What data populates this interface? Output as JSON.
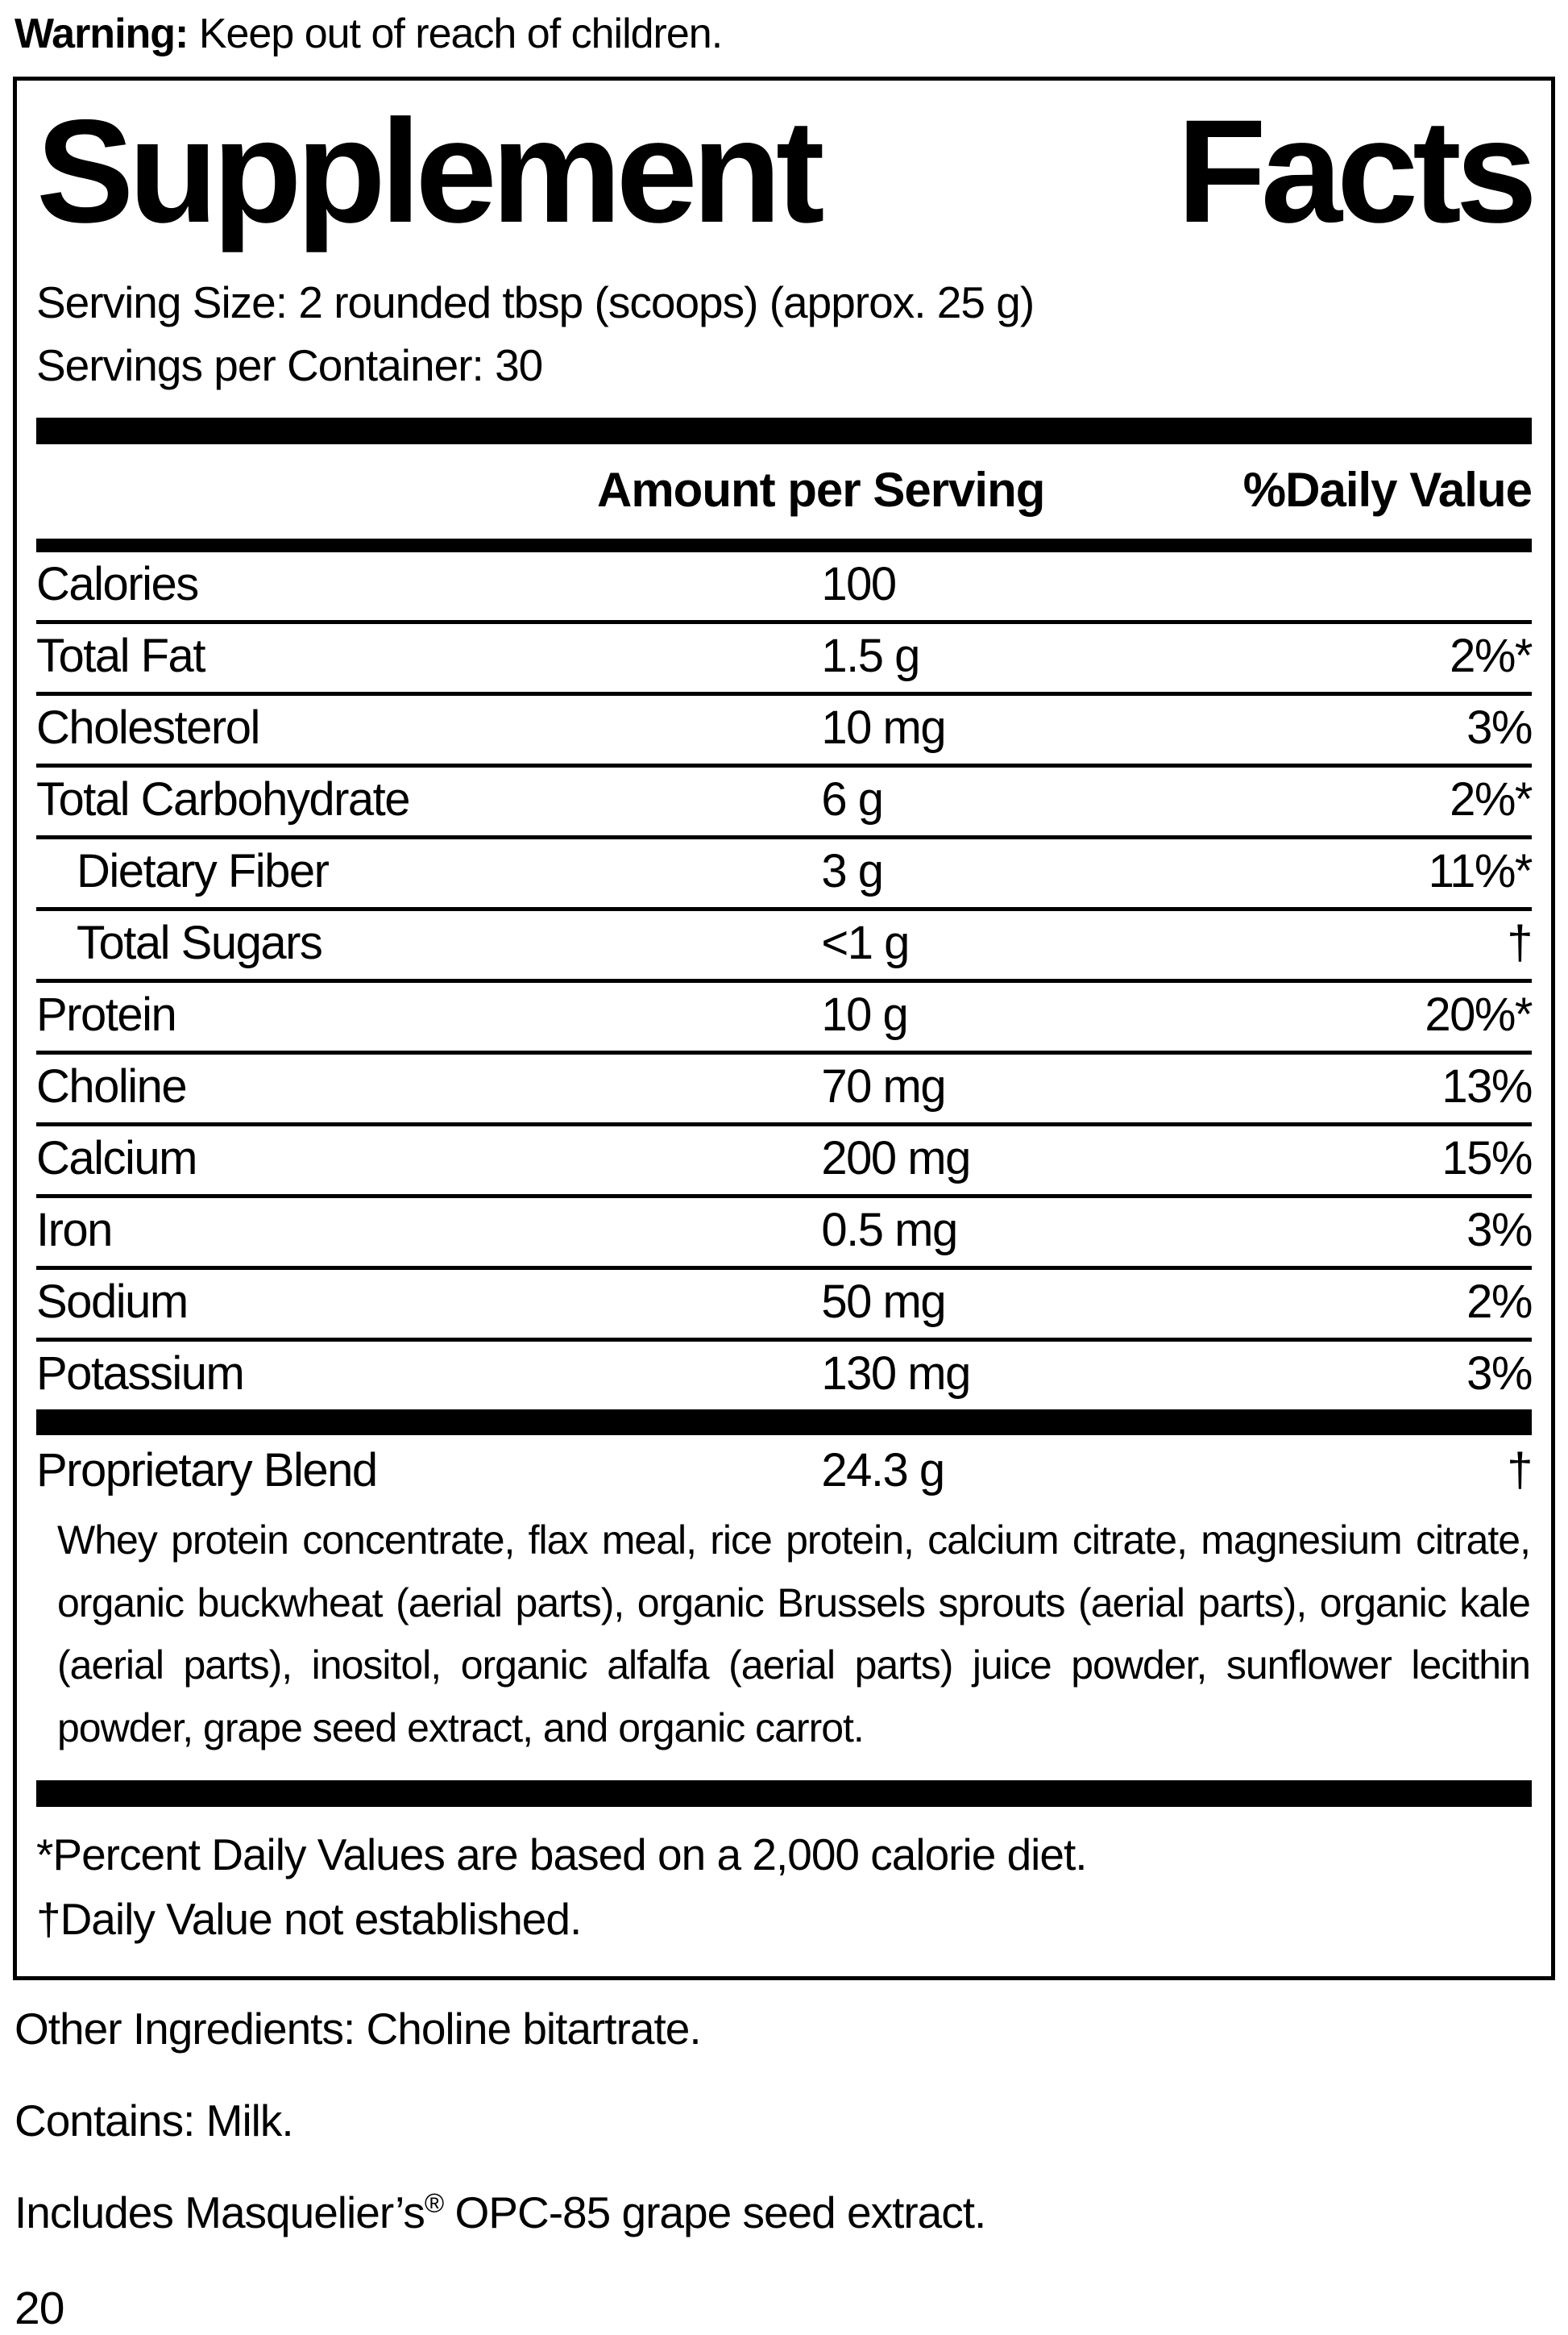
{
  "colors": {
    "ink": "#000000",
    "background": "#ffffff"
  },
  "warning": {
    "label": "Warning:",
    "text": " Keep out of reach of children."
  },
  "panel": {
    "title_left": "Supplement",
    "title_right": "Facts",
    "serving_size": "Serving Size: 2 rounded tbsp (scoops) (approx. 25 g)",
    "servings_per_container": "Servings per Container: 30",
    "header": {
      "amount": "Amount per Serving",
      "daily_value": "%Daily Value"
    },
    "rows": [
      {
        "label": "Calories",
        "amount": "100",
        "dv": "",
        "indent": false
      },
      {
        "label": "Total Fat",
        "amount": "1.5 g",
        "dv": "2%*",
        "indent": false
      },
      {
        "label": "Cholesterol",
        "amount": "10 mg",
        "dv": "3%",
        "indent": false
      },
      {
        "label": "Total Carbohydrate",
        "amount": "6 g",
        "dv": "2%*",
        "indent": false
      },
      {
        "label": "Dietary Fiber",
        "amount": "3 g",
        "dv": "11%*",
        "indent": true
      },
      {
        "label": "Total Sugars",
        "amount": "<1 g",
        "dv": "†",
        "indent": true
      },
      {
        "label": "Protein",
        "amount": "10 g",
        "dv": "20%*",
        "indent": false
      },
      {
        "label": "Choline",
        "amount": "70 mg",
        "dv": "13%",
        "indent": false
      },
      {
        "label": "Calcium",
        "amount": "200 mg",
        "dv": "15%",
        "indent": false
      },
      {
        "label": "Iron",
        "amount": "0.5 mg",
        "dv": "3%",
        "indent": false
      },
      {
        "label": "Sodium",
        "amount": "50 mg",
        "dv": "2%",
        "indent": false
      },
      {
        "label": "Potassium",
        "amount": "130 mg",
        "dv": "3%",
        "indent": false
      }
    ],
    "proprietary": {
      "label": "Proprietary Blend",
      "amount": "24.3 g",
      "dv": "†",
      "description": "Whey protein concentrate, flax meal, rice protein, calcium citrate, magnesium citrate, organic buckwheat (aerial parts), organic Brussels sprouts (aerial parts), organic kale (aerial parts), inositol, organic alfalfa (aerial parts) juice powder, sunflower lecithin powder, grape seed extract, and organic carrot."
    },
    "footnotes": [
      "*Percent Daily Values are based on a 2,000 calorie diet.",
      "†Daily Value not established."
    ]
  },
  "below_panel": {
    "other_ingredients": "Other Ingredients: Choline bitartrate.",
    "contains": "Contains: Milk.",
    "includes_prefix": "Includes Masquelier’s",
    "includes_reg": "®",
    "includes_suffix": " OPC-85 grape seed extract.",
    "page_number": "20"
  }
}
